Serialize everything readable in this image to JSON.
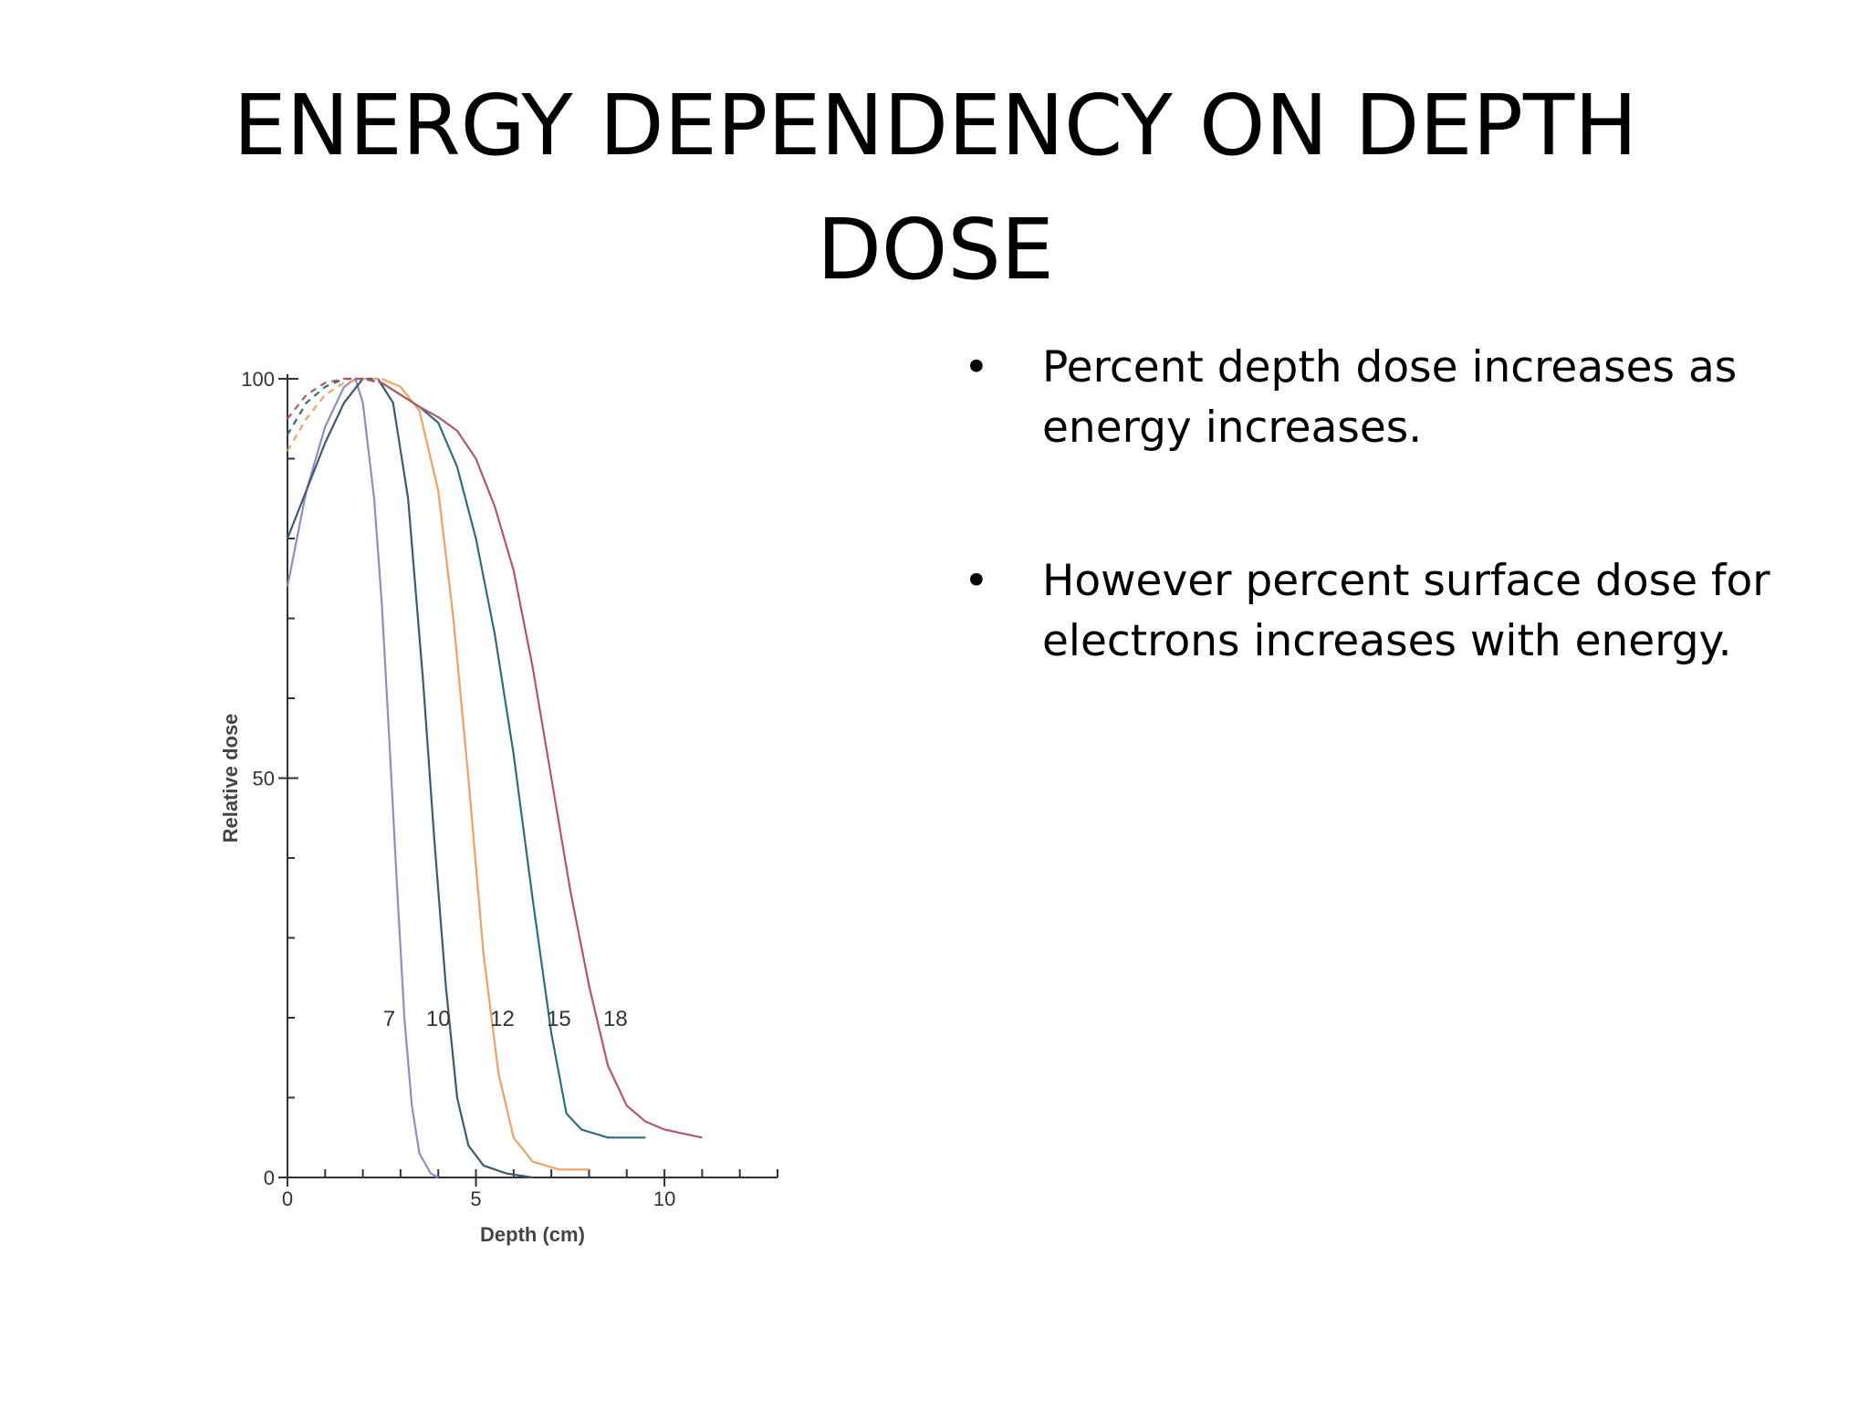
{
  "slide": {
    "title_line1": "ENERGY DEPENDENCY ON DEPTH",
    "title_line2": "DOSE",
    "bullets": [
      "Percent depth dose increases as energy increases.",
      "However percent surface dose for electrons increases with energy."
    ]
  },
  "chart_data": {
    "type": "line",
    "title": "",
    "xlabel": "Depth (cm)",
    "ylabel": "Relative dose",
    "xlim": [
      0,
      13
    ],
    "ylim": [
      0,
      100
    ],
    "x_ticks": [
      0,
      5,
      10
    ],
    "y_ticks": [
      0,
      50,
      100
    ],
    "grid": false,
    "series": [
      {
        "name": "7",
        "color": "#8e8cc4",
        "points": [
          [
            0,
            74
          ],
          [
            0.5,
            86
          ],
          [
            1.0,
            94
          ],
          [
            1.5,
            99
          ],
          [
            1.8,
            100
          ],
          [
            2.0,
            97
          ],
          [
            2.3,
            85
          ],
          [
            2.5,
            72
          ],
          [
            2.7,
            55
          ],
          [
            2.9,
            37
          ],
          [
            3.1,
            20
          ],
          [
            3.3,
            9
          ],
          [
            3.5,
            3
          ],
          [
            3.8,
            0.5
          ],
          [
            4.0,
            0
          ]
        ]
      },
      {
        "name": "10",
        "color": "#3e5a6e",
        "points": [
          [
            0,
            80
          ],
          [
            0.5,
            86
          ],
          [
            1.0,
            92
          ],
          [
            1.5,
            97
          ],
          [
            2.0,
            100
          ],
          [
            2.4,
            100
          ],
          [
            2.8,
            97
          ],
          [
            3.2,
            85
          ],
          [
            3.6,
            62
          ],
          [
            3.9,
            42
          ],
          [
            4.2,
            24
          ],
          [
            4.5,
            10
          ],
          [
            4.8,
            4
          ],
          [
            5.2,
            1.5
          ],
          [
            5.8,
            0.5
          ],
          [
            6.5,
            0
          ]
        ]
      },
      {
        "name": "12",
        "color": "#f0a060",
        "points": [
          [
            0,
            91
          ],
          [
            0.5,
            95
          ],
          [
            1.0,
            98
          ],
          [
            1.5,
            99.5
          ],
          [
            2.0,
            100
          ],
          [
            2.5,
            100
          ],
          [
            3.0,
            99
          ],
          [
            3.5,
            96
          ],
          [
            4.0,
            86
          ],
          [
            4.4,
            70
          ],
          [
            4.8,
            50
          ],
          [
            5.2,
            28
          ],
          [
            5.6,
            13
          ],
          [
            6.0,
            5
          ],
          [
            6.5,
            2
          ],
          [
            7.2,
            1
          ],
          [
            8.0,
            1
          ]
        ]
      },
      {
        "name": "15",
        "color": "#2d6e7a",
        "points": [
          [
            0,
            93
          ],
          [
            0.5,
            97
          ],
          [
            1.0,
            99
          ],
          [
            1.5,
            100
          ],
          [
            2.0,
            100
          ],
          [
            2.5,
            99.5
          ],
          [
            3.0,
            98
          ],
          [
            3.5,
            96.5
          ],
          [
            4.0,
            94.5
          ],
          [
            4.5,
            89
          ],
          [
            5.0,
            80
          ],
          [
            5.5,
            68
          ],
          [
            6.0,
            53
          ],
          [
            6.5,
            35
          ],
          [
            7.0,
            18
          ],
          [
            7.4,
            8
          ],
          [
            7.8,
            6
          ],
          [
            8.5,
            5
          ],
          [
            9.5,
            5
          ]
        ]
      },
      {
        "name": "18",
        "color": "#b05868",
        "points": [
          [
            0,
            95
          ],
          [
            0.5,
            98
          ],
          [
            1.0,
            99.5
          ],
          [
            1.5,
            100
          ],
          [
            2.0,
            100
          ],
          [
            2.5,
            99.5
          ],
          [
            3.0,
            98
          ],
          [
            3.5,
            96.5
          ],
          [
            4.0,
            95.2
          ],
          [
            4.5,
            93.5
          ],
          [
            5.0,
            90
          ],
          [
            5.5,
            84
          ],
          [
            6.0,
            76
          ],
          [
            6.5,
            64
          ],
          [
            7.0,
            50
          ],
          [
            7.5,
            36
          ],
          [
            8.0,
            24
          ],
          [
            8.5,
            14
          ],
          [
            9.0,
            9
          ],
          [
            9.5,
            7
          ],
          [
            10.0,
            6
          ],
          [
            10.5,
            5.5
          ],
          [
            11.0,
            5
          ]
        ]
      }
    ],
    "buildup_cutoff_x": 2.5,
    "labels": [
      {
        "text": "7",
        "x": 2.7,
        "y": 20
      },
      {
        "text": "10",
        "x": 4.0,
        "y": 20
      },
      {
        "text": "12",
        "x": 5.7,
        "y": 20
      },
      {
        "text": "15",
        "x": 7.2,
        "y": 20
      },
      {
        "text": "18",
        "x": 8.7,
        "y": 20
      }
    ]
  }
}
